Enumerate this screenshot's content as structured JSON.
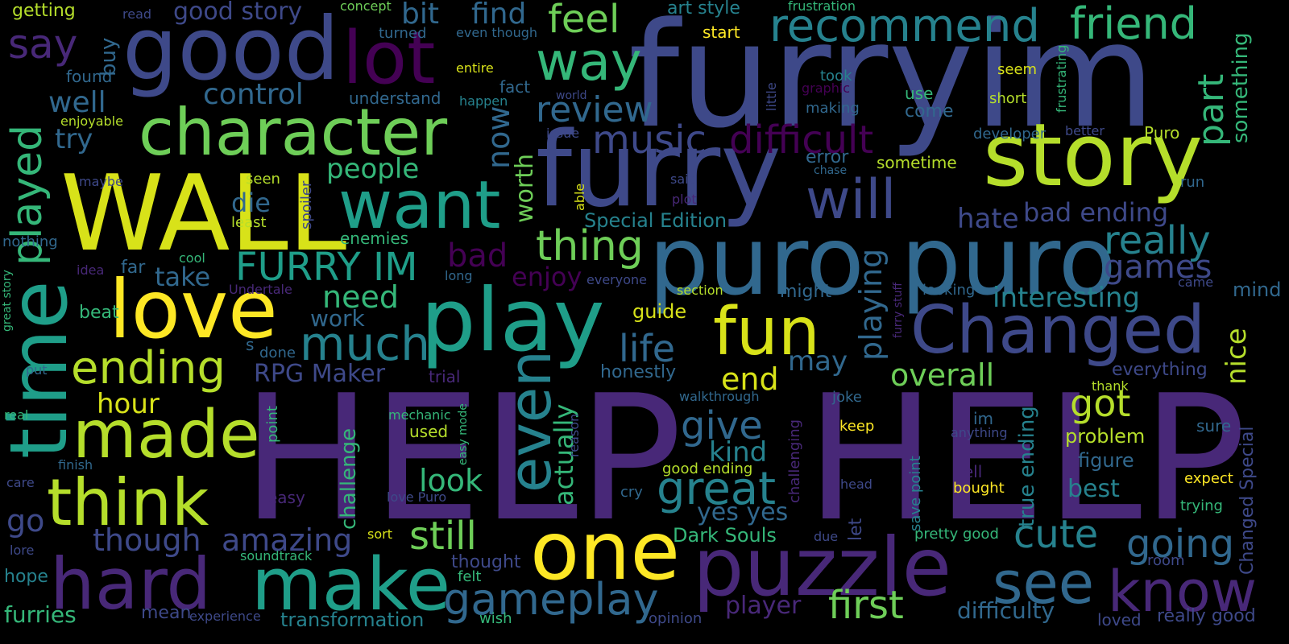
{
  "palette": {
    "yellow": "#fde725",
    "lime": "#b5de2b",
    "green": "#6ece58",
    "mint": "#35b779",
    "teal": "#1f9e89",
    "cyan": "#26828e",
    "steel": "#31688e",
    "indigo": "#3e4989",
    "purple": "#482878",
    "plum": "#440154",
    "background": "#000000"
  },
  "words": {
    "help_1": "HELP",
    "help_2": "HELP",
    "furry_im": "furryim",
    "furry": "furry",
    "puro_1": "puro",
    "puro_2": "puro",
    "story": "story",
    "wall": "WALL",
    "good": "good",
    "lot": "lot",
    "play": "play",
    "love": "love",
    "time": "time",
    "character": "character",
    "changed": "Changed",
    "one": "one",
    "puzzle": "puzzle",
    "make": "make",
    "hard": "hard",
    "made": "made",
    "think": "think",
    "want": "want",
    "fun": "fun",
    "even": "even",
    "way": "way",
    "will": "will",
    "know": "know",
    "see": "see",
    "recommend": "recommend",
    "friend": "friend",
    "gameplay": "gameplay",
    "ending": "ending",
    "played": "played",
    "much": "much",
    "say": "say",
    "great": "great",
    "thing": "thing",
    "furry_im_caps": "FURRY IM",
    "really": "really",
    "first": "first",
    "difficult": "difficult",
    "music": "music",
    "review": "review",
    "still": "still",
    "cute": "cute",
    "going": "going",
    "amazing": "amazing",
    "though": "though",
    "got": "got",
    "give": "give",
    "life": "life",
    "playing": "playing",
    "games": "games",
    "part": "part",
    "control": "control",
    "feel": "feel",
    "bit": "bit",
    "find": "find",
    "overall": "overall",
    "look": "look",
    "now": "now",
    "good_story": "good story",
    "interesting": "interesting",
    "kind": "kind",
    "need": "need",
    "end": "end",
    "hour": "hour",
    "best": "best",
    "people": "people",
    "bad": "bad",
    "bad_ending": "bad ending",
    "hate": "hate",
    "enjoy": "enjoy",
    "actually": "actually",
    "go": "go",
    "nice": "nice",
    "well": "well",
    "try": "try",
    "rpg_maker": "RPG Maker",
    "special_edition": "Special Edition",
    "worth": "worth",
    "die": "die",
    "take": "take",
    "may": "may",
    "player": "player",
    "difficulty": "difficulty",
    "transformation": "transformation",
    "true_ending": "true ending",
    "something": "something",
    "yes_yes": "yes yes",
    "challenge": "challenge",
    "furries": "furries",
    "dark_souls": "Dark Souls",
    "buy": "buy",
    "work": "work",
    "honestly": "honestly",
    "guide": "guide",
    "figure": "figure",
    "problem": "problem",
    "everything": "everything",
    "mind": "mind",
    "changed_special": "Changed Special",
    "art_style": "art style",
    "frustration": "frustration",
    "getting": "getting",
    "read": "read",
    "concept": "concept",
    "turned": "turned",
    "even_though": "even though",
    "start": "start",
    "found": "found",
    "entire": "entire",
    "fact": "fact",
    "understand": "understand",
    "happen": "happen",
    "world": "world",
    "took": "took",
    "graphic": "graphic",
    "making": "making",
    "use": "use",
    "come": "come",
    "seem": "seem",
    "short": "short",
    "frustrating": "frustrating",
    "enjoyable": "enjoyable",
    "issue": "issue",
    "little": "little",
    "developer": "developer",
    "better": "better",
    "puro_small": "Puro",
    "error": "error",
    "chase": "chase",
    "sometime": "sometime",
    "maybe": "maybe",
    "seen": "seen",
    "spoiler": "spoiler",
    "said": "said",
    "plot": "plot",
    "able": "able",
    "run": "run",
    "least": "least",
    "nothing": "nothing",
    "enemies": "enemies",
    "cool": "cool",
    "idea": "idea",
    "far": "far",
    "long": "long",
    "everyone": "everyone",
    "undertale": "Undertale",
    "great_story": "great story",
    "section": "section",
    "might": "might",
    "looking": "looking",
    "came": "came",
    "furry_stuff": "furry stuff",
    "beat": "beat",
    "s": "s",
    "done": "done",
    "put": "put",
    "trial": "trial",
    "walkthrough": "walkthrough",
    "joke": "joke",
    "thank": "thank",
    "real": "real",
    "point": "point",
    "mechanic": "mechanic",
    "easy_mode": "easy mode",
    "reason": "reason",
    "challenging": "challenging",
    "im": "im",
    "anything": "anything",
    "keep": "keep",
    "finish": "finish",
    "used": "used",
    "good_ending": "good ending",
    "tell": "tell",
    "bought": "bought",
    "sure": "sure",
    "care": "care",
    "easy": "easy",
    "love_puro": "love Puro",
    "cry": "cry",
    "head": "head",
    "save_point": "save point",
    "expect": "expect",
    "trying": "trying",
    "sort": "sort",
    "due": "due",
    "let": "let",
    "pretty_good": "pretty good",
    "lore": "lore",
    "soundtrack": "soundtrack",
    "thought": "thought",
    "hope": "hope",
    "felt": "felt",
    "room": "room",
    "mean": "mean",
    "experience": "experience",
    "wish": "wish",
    "opinion": "opinion",
    "loved": "loved",
    "really_good": "really good"
  }
}
